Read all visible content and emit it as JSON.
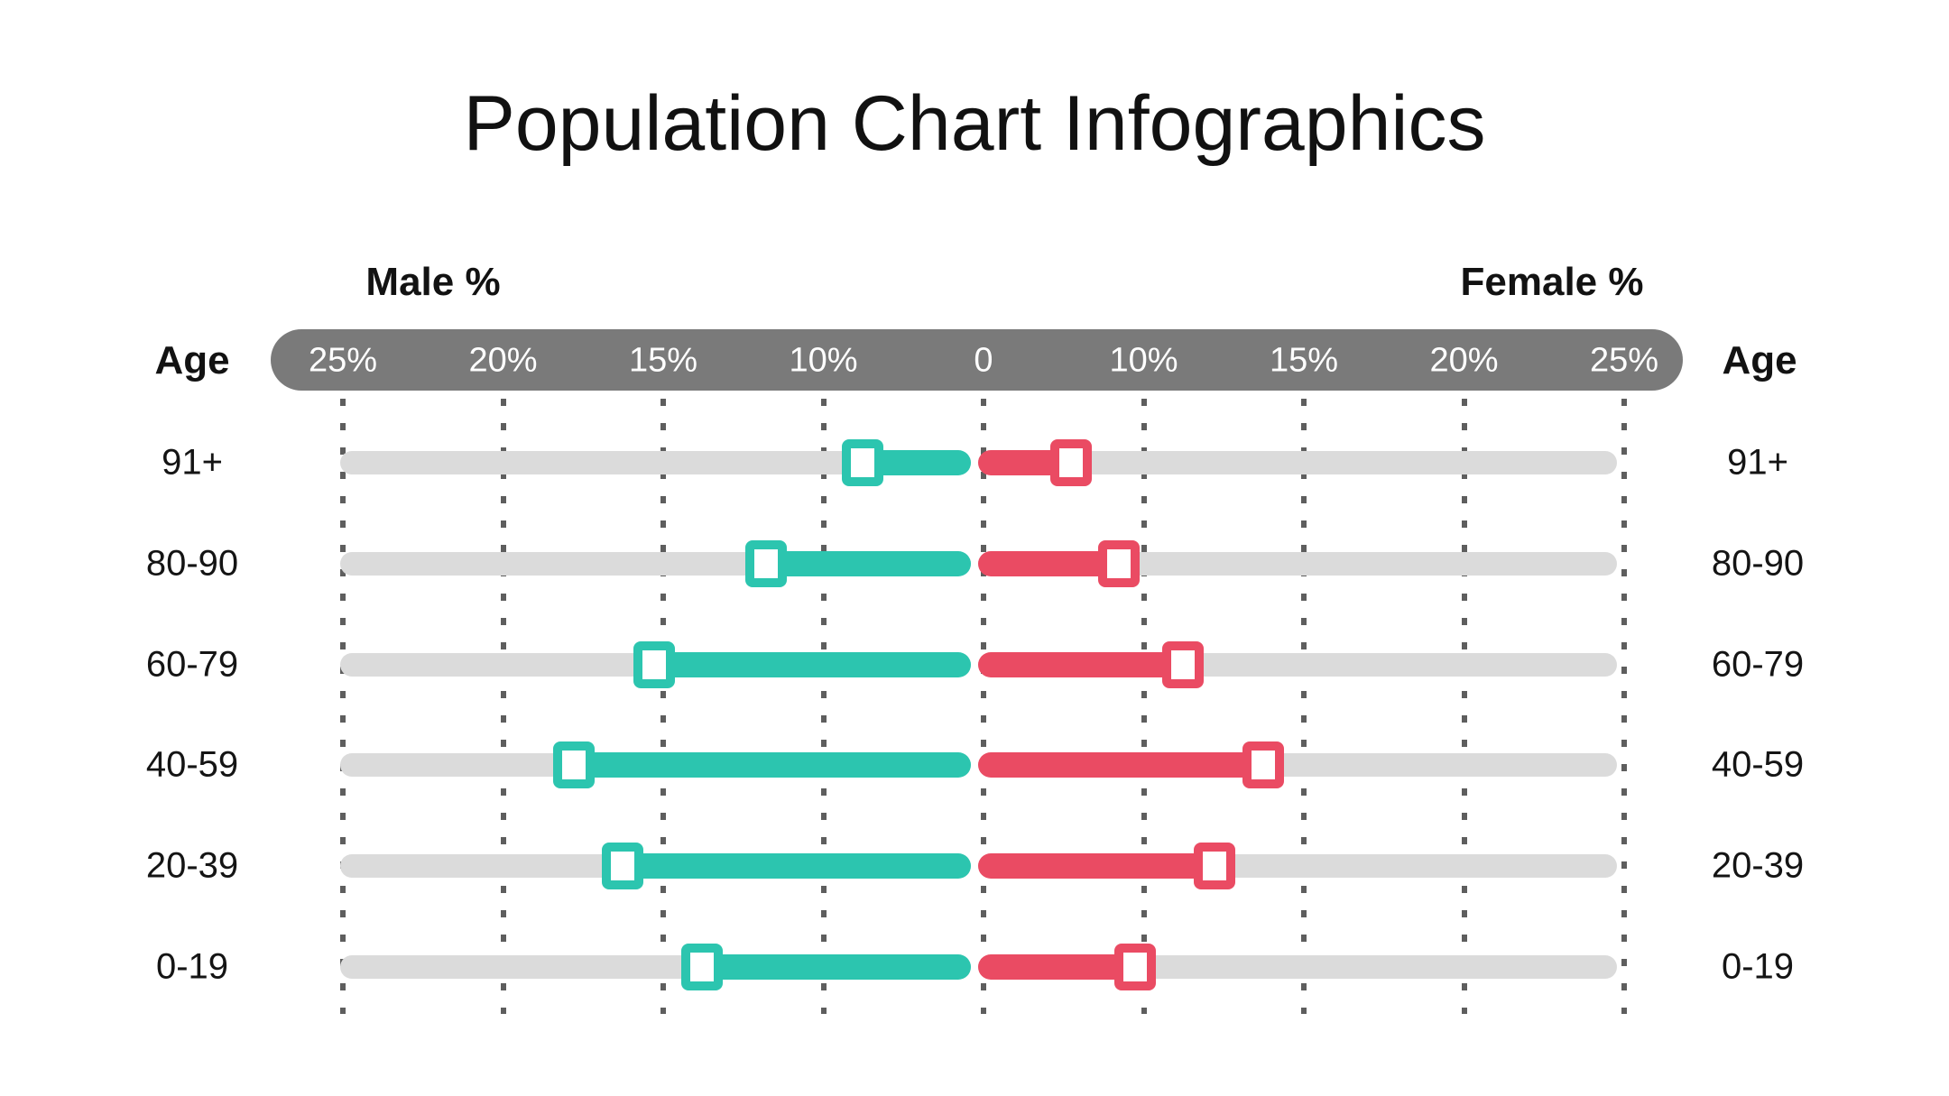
{
  "chart_data": {
    "type": "bar",
    "variant": "population-pyramid-sliders",
    "title": "Population Chart Infographics",
    "left_header": "Male %",
    "right_header": "Female %",
    "age_header": "Age",
    "axis_ticks": [
      "25%",
      "20%",
      "15%",
      "10%",
      "0",
      "10%",
      "15%",
      "20%",
      "25%"
    ],
    "axis_note": "ticks evenly spaced; center tick is 0, value range 0-25% on each side",
    "xlim_each_side": [
      0,
      25
    ],
    "grid": "dotted-vertical",
    "categories": [
      "91+",
      "80-90",
      "60-79",
      "40-59",
      "20-39",
      "0-19"
    ],
    "series": [
      {
        "name": "Male %",
        "side": "left",
        "values": [
          7,
          11.5,
          15,
          17.5,
          16,
          13.5
        ]
      },
      {
        "name": "Female %",
        "side": "right",
        "values": [
          6,
          9,
          11.5,
          14,
          12.5,
          10
        ]
      }
    ],
    "colors": {
      "male": "#2CC5AF",
      "female": "#EA4B63",
      "axis_bar": "#7A7A7A",
      "axis_text": "#FFFFFF",
      "track": "#DBDBDB",
      "gridline": "#5E5E5E",
      "text": "#141414",
      "marker_fill": "#FFFFFF"
    }
  }
}
